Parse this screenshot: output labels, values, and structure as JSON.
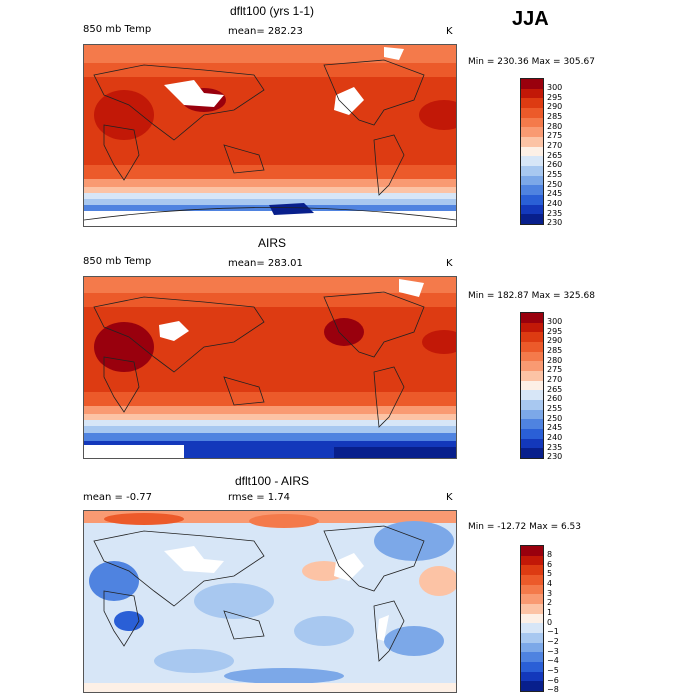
{
  "season": "JJA",
  "panels": [
    {
      "title": "dflt100 (yrs 1-1)",
      "left_label": "850 mb Temp",
      "center_label": "mean=  282.23",
      "unit": "K",
      "minmax": "Min = 230.36 Max = 305.67",
      "levels": [
        "300",
        "295",
        "290",
        "285",
        "280",
        "275",
        "270",
        "265",
        "260",
        "255",
        "250",
        "245",
        "240",
        "235",
        "230"
      ],
      "colors": [
        "#99000d",
        "#c21807",
        "#dd3b12",
        "#ec5a2a",
        "#f47a4b",
        "#f99a72",
        "#fcc3a5",
        "#fdf0e6",
        "#d7e6f7",
        "#a8c8f0",
        "#7ca8e8",
        "#4f83e0",
        "#2a5fd6",
        "#1338bb",
        "#081f8c"
      ]
    },
    {
      "title": "AIRS",
      "left_label": "850 mb Temp",
      "center_label": "mean=  283.01",
      "unit": "K",
      "minmax": "Min = 182.87 Max = 325.68",
      "levels": [
        "300",
        "295",
        "290",
        "285",
        "280",
        "275",
        "270",
        "265",
        "260",
        "255",
        "250",
        "245",
        "240",
        "235",
        "230"
      ],
      "colors": [
        "#99000d",
        "#c21807",
        "#dd3b12",
        "#ec5a2a",
        "#f47a4b",
        "#f99a72",
        "#fcc3a5",
        "#fdf0e6",
        "#d7e6f7",
        "#a8c8f0",
        "#7ca8e8",
        "#4f83e0",
        "#2a5fd6",
        "#1338bb",
        "#081f8c"
      ]
    },
    {
      "title": "dflt100 - AIRS",
      "left_label": "mean =   -0.77",
      "center_label": "rmse =    1.74",
      "unit": "K",
      "minmax": "Min = -12.72 Max =    6.53",
      "levels": [
        "8",
        "6",
        "5",
        "4",
        "3",
        "2",
        "1",
        "0",
        "−1",
        "−2",
        "−3",
        "−4",
        "−5",
        "−6",
        "−8"
      ],
      "colors": [
        "#99000d",
        "#c21807",
        "#dd3b12",
        "#ec5a2a",
        "#f47a4b",
        "#f99a72",
        "#fcc3a5",
        "#fdf0e6",
        "#d7e6f7",
        "#a8c8f0",
        "#7ca8e8",
        "#4f83e0",
        "#2a5fd6",
        "#1338bb",
        "#081f8c"
      ]
    }
  ]
}
